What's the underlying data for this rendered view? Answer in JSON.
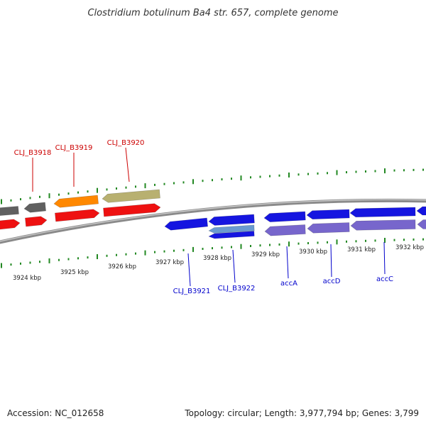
{
  "title": "Clostridium botulinum Ba4 str. 657, complete genome",
  "footer": {
    "accession": "Accession: NC_012658",
    "summary": "Topology: circular; Length: 3,977,794 bp; Genes: 3,799"
  },
  "ruler": {
    "tick_labels": [
      "3924 kbp",
      "3925 kbp",
      "3926 kbp",
      "3927 kbp",
      "3928 kbp",
      "3929 kbp",
      "3930 kbp",
      "3931 kbp",
      "3932 kbp"
    ]
  },
  "genes": {
    "forward": [
      "CLJ_B3918",
      "CLJ_B3919",
      "CLJ_B3920"
    ],
    "reverse": [
      "CLJ_B3921",
      "CLJ_B3922",
      "accA",
      "accD",
      "accC"
    ]
  },
  "colors": {
    "forward_label": "#cc0000",
    "reverse_label": "#0000cc",
    "cds_forward": "#ee1111",
    "cds_reverse": "#1515e0",
    "gene_reverse": "#7766cc",
    "gene_gray": "#606060",
    "gene_orange": "#ff8800",
    "gene_olive": "#b8b070",
    "ticks": "#228822"
  }
}
